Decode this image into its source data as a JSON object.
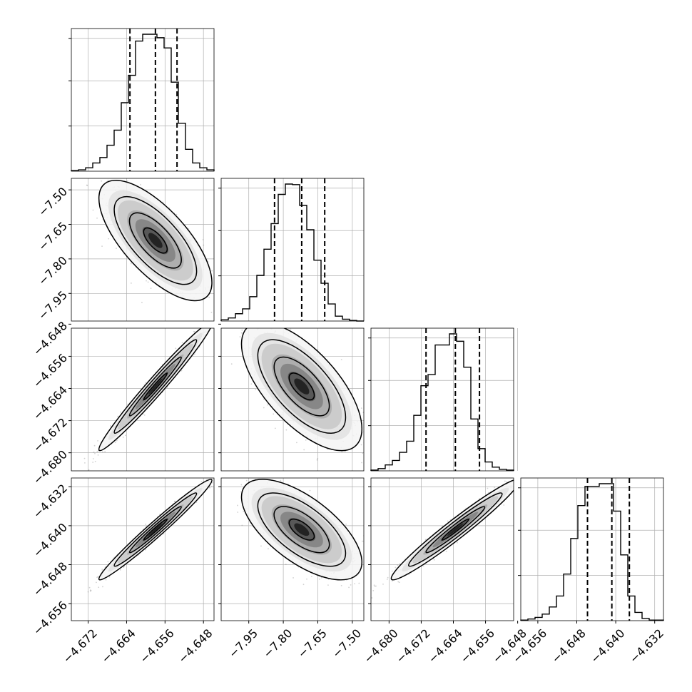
{
  "chart_data": {
    "type": "scatter",
    "style": {
      "line_color": "#000000",
      "grid_color": "#b0b0b0",
      "scatter_color": "#7f7f7f",
      "fill_colors": [
        "#f5f5f5",
        "#e2e2e2",
        "#c8c8c8",
        "#a8a8a8",
        "#808080",
        "#505050",
        "#1a1a1a"
      ]
    },
    "parameters": [
      {
        "range": [
          -4.6755,
          -4.6458
        ],
        "ticks": [
          -4.672,
          -4.664,
          -4.656,
          -4.648
        ],
        "tick_labels": [
          "−4.672",
          "−4.664",
          "−4.656",
          "−4.648"
        ],
        "quantiles": [
          -4.6633,
          -4.658,
          -4.6535
        ],
        "hist_bins": [
          -4.6755,
          -4.6458,
          20
        ],
        "hist_counts": [
          1,
          2,
          5,
          12,
          20,
          38,
          60,
          100,
          140,
          190,
          200,
          200,
          195,
          180,
          130,
          70,
          32,
          12,
          5,
          2
        ]
      },
      {
        "range": [
          -8.07,
          -7.45
        ],
        "ticks": [
          -7.95,
          -7.8,
          -7.65,
          -7.5
        ],
        "tick_labels": [
          "−7.95",
          "−7.80",
          "−7.65",
          "−7.50"
        ],
        "quantiles": [
          -7.838,
          -7.72,
          -7.62
        ],
        "hist_bins": [
          -8.07,
          -7.45,
          20
        ],
        "hist_counts": [
          2,
          5,
          12,
          20,
          40,
          75,
          118,
          160,
          208,
          225,
          224,
          190,
          150,
          100,
          62,
          28,
          8,
          3,
          1,
          0
        ]
      },
      {
        "range": [
          -4.6845,
          -4.649
        ],
        "ticks": [
          -4.68,
          -4.672,
          -4.664,
          -4.656,
          -4.648
        ],
        "tick_labels": [
          "−4.680",
          "−4.672",
          "−4.664",
          "−4.656",
          "−4.648"
        ],
        "quantiles": [
          -4.6708,
          -4.6635,
          -4.6575
        ],
        "hist_bins": [
          -4.6845,
          -4.649,
          20
        ],
        "hist_counts": [
          1,
          3,
          8,
          14,
          25,
          40,
          75,
          115,
          130,
          170,
          170,
          185,
          175,
          140,
          70,
          30,
          12,
          5,
          2,
          1
        ]
      },
      {
        "range": [
          -4.6595,
          -4.6302
        ],
        "ticks": [
          -4.656,
          -4.648,
          -4.64,
          -4.632
        ],
        "tick_labels": [
          "−4.656",
          "−4.648",
          "−4.640",
          "−4.632"
        ],
        "quantiles": [
          -4.6458,
          -4.6408,
          -4.6372
        ],
        "hist_bins": [
          -4.6595,
          -4.6302,
          20
        ],
        "hist_counts": [
          1,
          3,
          6,
          12,
          25,
          45,
          85,
          150,
          210,
          245,
          245,
          250,
          250,
          200,
          120,
          45,
          15,
          4,
          1,
          1
        ]
      }
    ],
    "pair_correlation": [
      [
        1.0,
        -0.7,
        0.98,
        0.98
      ],
      [
        -0.7,
        1.0,
        -0.66,
        -0.65
      ],
      [
        0.98,
        -0.66,
        1.0,
        0.97
      ],
      [
        0.98,
        -0.65,
        0.97,
        1.0
      ]
    ]
  }
}
